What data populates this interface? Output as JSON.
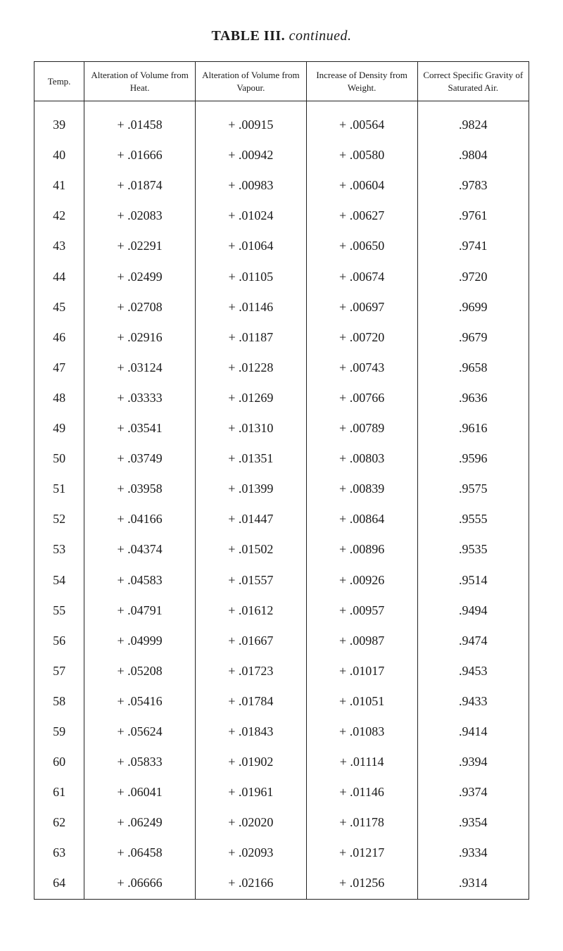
{
  "title_prefix": "TABLE III.",
  "title_suffix": "continued.",
  "columns": [
    {
      "key": "temp",
      "label": "Temp."
    },
    {
      "key": "heat",
      "label": "Alteration of Volume from Heat."
    },
    {
      "key": "vapour",
      "label": "Alteration of Volume from Vapour."
    },
    {
      "key": "density",
      "label": "Increase of Density from Weight."
    },
    {
      "key": "gravity",
      "label": "Correct Specific Gravity of Saturated Air."
    }
  ],
  "rows": [
    {
      "temp": "39",
      "heat": "+ .01458",
      "vapour": "+ .00915",
      "density": "+ .00564",
      "gravity": ".9824"
    },
    {
      "temp": "40",
      "heat": "+ .01666",
      "vapour": "+ .00942",
      "density": "+ .00580",
      "gravity": ".9804"
    },
    {
      "temp": "41",
      "heat": "+ .01874",
      "vapour": "+ .00983",
      "density": "+ .00604",
      "gravity": ".9783"
    },
    {
      "temp": "42",
      "heat": "+ .02083",
      "vapour": "+ .01024",
      "density": "+ .00627",
      "gravity": ".9761"
    },
    {
      "temp": "43",
      "heat": "+ .02291",
      "vapour": "+ .01064",
      "density": "+ .00650",
      "gravity": ".9741"
    },
    {
      "temp": "44",
      "heat": "+ .02499",
      "vapour": "+ .01105",
      "density": "+ .00674",
      "gravity": ".9720"
    },
    {
      "temp": "45",
      "heat": "+ .02708",
      "vapour": "+ .01146",
      "density": "+ .00697",
      "gravity": ".9699"
    },
    {
      "temp": "46",
      "heat": "+ .02916",
      "vapour": "+ .01187",
      "density": "+ .00720",
      "gravity": ".9679"
    },
    {
      "temp": "47",
      "heat": "+ .03124",
      "vapour": "+ .01228",
      "density": "+ .00743",
      "gravity": ".9658"
    },
    {
      "temp": "48",
      "heat": "+ .03333",
      "vapour": "+ .01269",
      "density": "+ .00766",
      "gravity": ".9636"
    },
    {
      "temp": "49",
      "heat": "+ .03541",
      "vapour": "+ .01310",
      "density": "+ .00789",
      "gravity": ".9616"
    },
    {
      "temp": "50",
      "heat": "+ .03749",
      "vapour": "+ .01351",
      "density": "+ .00803",
      "gravity": ".9596"
    },
    {
      "temp": "51",
      "heat": "+ .03958",
      "vapour": "+ .01399",
      "density": "+ .00839",
      "gravity": ".9575"
    },
    {
      "temp": "52",
      "heat": "+ .04166",
      "vapour": "+ .01447",
      "density": "+ .00864",
      "gravity": ".9555"
    },
    {
      "temp": "53",
      "heat": "+ .04374",
      "vapour": "+ .01502",
      "density": "+ .00896",
      "gravity": ".9535"
    },
    {
      "temp": "54",
      "heat": "+ .04583",
      "vapour": "+ .01557",
      "density": "+ .00926",
      "gravity": ".9514"
    },
    {
      "temp": "55",
      "heat": "+ .04791",
      "vapour": "+ .01612",
      "density": "+ .00957",
      "gravity": ".9494"
    },
    {
      "temp": "56",
      "heat": "+ .04999",
      "vapour": "+ .01667",
      "density": "+ .00987",
      "gravity": ".9474"
    },
    {
      "temp": "57",
      "heat": "+ .05208",
      "vapour": "+ .01723",
      "density": "+ .01017",
      "gravity": ".9453"
    },
    {
      "temp": "58",
      "heat": "+ .05416",
      "vapour": "+ .01784",
      "density": "+ .01051",
      "gravity": ".9433"
    },
    {
      "temp": "59",
      "heat": "+ .05624",
      "vapour": "+ .01843",
      "density": "+ .01083",
      "gravity": ".9414"
    },
    {
      "temp": "60",
      "heat": "+ .05833",
      "vapour": "+ .01902",
      "density": "+ .01114",
      "gravity": ".9394"
    },
    {
      "temp": "61",
      "heat": "+ .06041",
      "vapour": "+ .01961",
      "density": "+ .01146",
      "gravity": ".9374"
    },
    {
      "temp": "62",
      "heat": "+ .06249",
      "vapour": "+ .02020",
      "density": "+ .01178",
      "gravity": ".9354"
    },
    {
      "temp": "63",
      "heat": "+ .06458",
      "vapour": "+ .02093",
      "density": "+ .01217",
      "gravity": ".9334"
    },
    {
      "temp": "64",
      "heat": "+ .06666",
      "vapour": "+ .02166",
      "density": "+ .01256",
      "gravity": ".9314"
    }
  ]
}
